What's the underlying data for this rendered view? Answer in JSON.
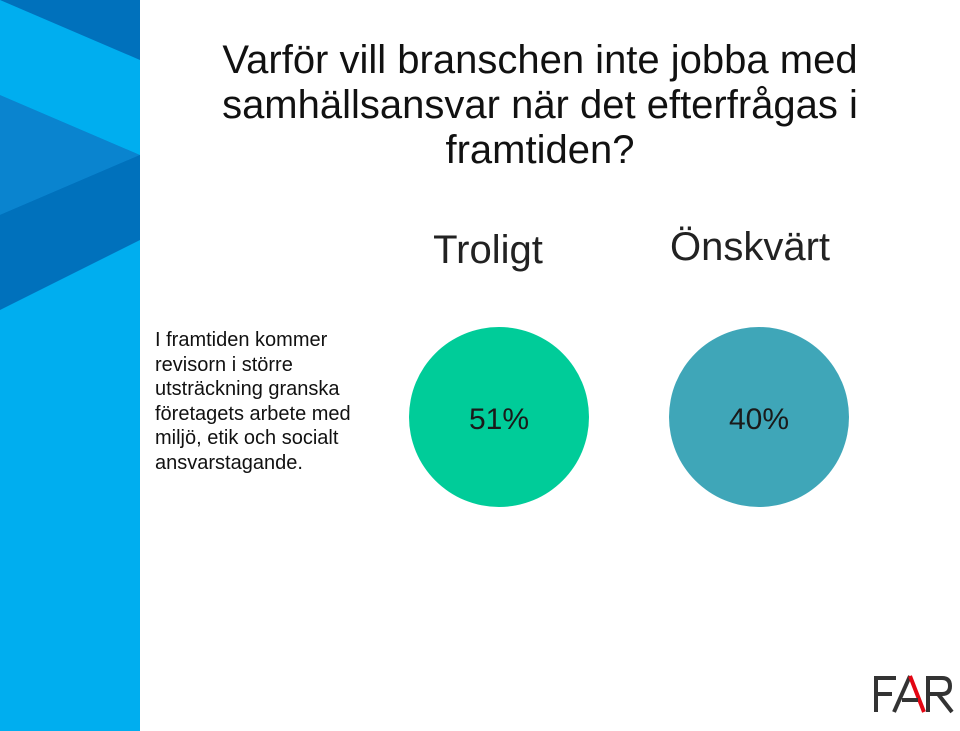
{
  "slide": {
    "title_lines": [
      "Varför vill branschen inte jobba med",
      "samhällsansvar när det efterfrågas i",
      "framtiden?"
    ],
    "question_lines": [
      "I framtiden kommer",
      "revisorn i större",
      "utsträckning granska",
      "företagets arbete med",
      "miljö, etik och socialt",
      "ansvarstagande."
    ]
  },
  "columns": [
    {
      "header": "Troligt",
      "value": "51%",
      "color": "#00cc99"
    },
    {
      "header": "Önskvärt",
      "value": "40%",
      "color": "#3fa6b8"
    }
  ],
  "logo": {
    "name": "FAR",
    "text": "FAR"
  },
  "colors": {
    "sidebar_light": "#00aeef",
    "sidebar_dark": "#0071bc"
  }
}
